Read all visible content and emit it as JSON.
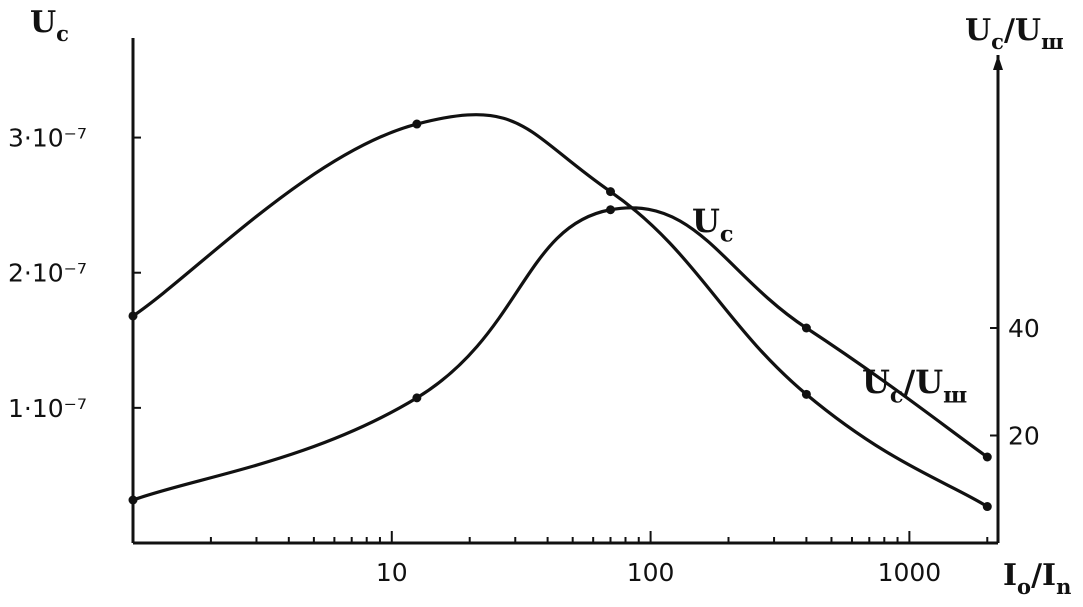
{
  "chart_data": {
    "type": "line",
    "x_scale": "log",
    "xlim": [
      1,
      2200
    ],
    "ylim_left": [
      0,
      3.5e-07
    ],
    "ylim_right": [
      0,
      88
    ],
    "axis_labels": {
      "y_left": "U_c",
      "y_right": "U_c/U_ш",
      "x": "I_o/I_n"
    },
    "x_tick_labels": [
      {
        "value": 10,
        "label": "10"
      },
      {
        "value": 100,
        "label": "100"
      },
      {
        "value": 1000,
        "label": "1000"
      }
    ],
    "y_left_tick_labels": [
      {
        "value": 1e-07,
        "label": "1·10⁻⁷"
      },
      {
        "value": 2e-07,
        "label": "2·10⁻⁷"
      },
      {
        "value": 3e-07,
        "label": "3·10⁻⁷"
      }
    ],
    "y_right_tick_labels": [
      {
        "value": 20,
        "label": "20"
      },
      {
        "value": 40,
        "label": "40"
      }
    ],
    "series": [
      {
        "name": "U_c",
        "axis": "left",
        "x": [
          1,
          12.5,
          70,
          400,
          2000
        ],
        "y": [
          1.68e-07,
          3.1e-07,
          2.6e-07,
          1.1e-07,
          2.7e-08
        ]
      },
      {
        "name": "U_c/U_ш",
        "axis": "right",
        "x": [
          1,
          12.5,
          70,
          400,
          2000
        ],
        "y": [
          8,
          27,
          62,
          40,
          16
        ]
      }
    ],
    "series_labels": [
      {
        "series": 0,
        "base": "U",
        "sub": "c",
        "tail": ""
      },
      {
        "series": 1,
        "base": "U",
        "sub": "c",
        "tail": "/U",
        "sub2": "ш"
      }
    ],
    "grid": false,
    "legend": "inline labels"
  }
}
